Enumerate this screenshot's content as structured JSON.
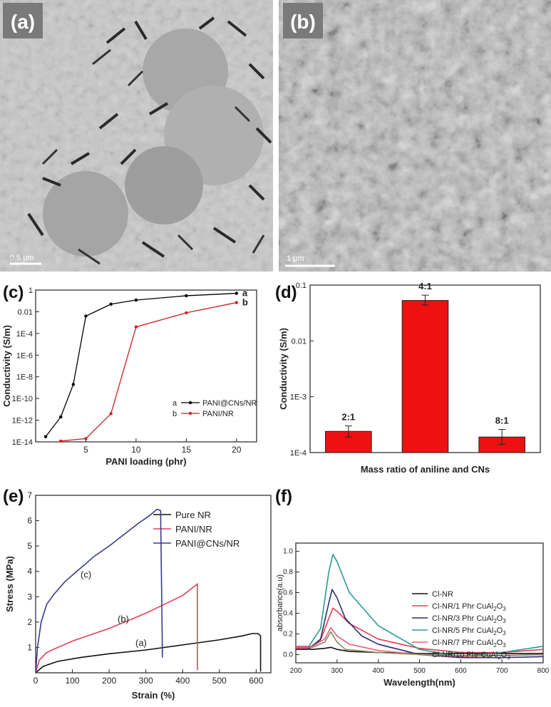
{
  "figure": {
    "panel_labels": {
      "a": "(a)",
      "b": "(b)",
      "c": "(c)",
      "d": "(d)",
      "e": "(e)",
      "f": "(f)"
    },
    "micrograph_a": {
      "scale_bar": "0.5 μm"
    },
    "micrograph_b": {
      "scale_bar": "1 μm"
    }
  },
  "chart_data": [
    {
      "id": "c",
      "type": "line",
      "yscale": "log",
      "xlabel": "PANI loading (phr)",
      "ylabel": "Conductivity (S/m)",
      "xlim": [
        0,
        22
      ],
      "ylim": [
        1e-14,
        1
      ],
      "xticks": [
        5,
        10,
        15,
        20
      ],
      "yticks": [
        {
          "v": 1,
          "label": "1"
        },
        {
          "v": 0.01,
          "label": "0.01"
        },
        {
          "v": 0.0001,
          "label": "1E-4"
        },
        {
          "v": 1e-06,
          "label": "1E-6"
        },
        {
          "v": 1e-08,
          "label": "1E-8"
        },
        {
          "v": 1e-10,
          "label": "1E-10"
        },
        {
          "v": 1e-12,
          "label": "1E-12"
        },
        {
          "v": 1e-14,
          "label": "1E-14"
        }
      ],
      "legend_position": "bottom-right",
      "series": [
        {
          "name": "PANI@CNs/NR",
          "key": "a",
          "color": "#000000",
          "x": [
            1,
            2.5,
            3.75,
            5,
            7.5,
            10,
            15,
            20
          ],
          "y": [
            3e-14,
            2e-12,
            2e-09,
            0.004,
            0.05,
            0.12,
            0.3,
            0.5
          ]
        },
        {
          "name": "PANI/NR",
          "key": "b",
          "color": "#cc2222",
          "x": [
            2.5,
            5,
            7.5,
            10,
            15,
            20
          ],
          "y": [
            1.2e-14,
            2e-14,
            4e-12,
            0.0004,
            0.008,
            0.07
          ]
        }
      ],
      "series_end_labels": [
        "a",
        "b"
      ]
    },
    {
      "id": "d",
      "type": "bar",
      "yscale": "log",
      "xlabel": "Mass ratio of aniline and CNs",
      "ylabel": "Conductivity (S/m)",
      "ylim": [
        0.0001,
        0.1
      ],
      "yticks": [
        {
          "v": 0.1,
          "label": "0.1"
        },
        {
          "v": 0.01,
          "label": "0.01"
        },
        {
          "v": 0.001,
          "label": "1E-3"
        },
        {
          "v": 0.0001,
          "label": "1E-4"
        }
      ],
      "categories": [
        "2:1",
        "4:1",
        "8:1"
      ],
      "values": [
        0.00024,
        0.053,
        0.00019
      ],
      "errors_upper": [
        0.0003,
        0.066,
        0.00026
      ],
      "errors_lower": [
        0.00019,
        0.044,
        0.00014
      ],
      "bar_color": "#ee1111"
    },
    {
      "id": "e",
      "type": "line",
      "xlabel": "Strain (%)",
      "ylabel": "Stress (MPa)",
      "xlim": [
        0,
        640
      ],
      "ylim": [
        0,
        7
      ],
      "xticks": [
        0,
        100,
        200,
        300,
        400,
        500,
        600
      ],
      "yticks": [
        1,
        2,
        3,
        4,
        5,
        6,
        7
      ],
      "legend_position": "top-right",
      "series": [
        {
          "name": "Pure NR",
          "color": "#111111",
          "x": [
            0,
            20,
            60,
            120,
            200,
            300,
            400,
            500,
            560,
            590,
            605,
            612,
            612
          ],
          "y": [
            0,
            0.25,
            0.45,
            0.6,
            0.75,
            0.9,
            1.1,
            1.3,
            1.45,
            1.55,
            1.55,
            1.45,
            0.05
          ]
        },
        {
          "name": "PANI/NR",
          "color": "#e0405a",
          "x": [
            0,
            10,
            30,
            60,
            100,
            150,
            200,
            250,
            300,
            350,
            400,
            440,
            440
          ],
          "y": [
            0,
            0.5,
            0.8,
            1.0,
            1.25,
            1.5,
            1.75,
            2.05,
            2.35,
            2.7,
            3.05,
            3.5,
            0.1
          ]
        },
        {
          "name": "PANI@CNs/NR",
          "color": "#3a3a8a",
          "x": [
            0,
            5,
            15,
            30,
            50,
            80,
            120,
            160,
            200,
            240,
            280,
            310,
            330,
            340,
            345
          ],
          "y": [
            0,
            1.0,
            2.0,
            2.7,
            3.1,
            3.6,
            4.1,
            4.6,
            5.0,
            5.45,
            5.9,
            6.2,
            6.45,
            6.4,
            0.6
          ]
        }
      ],
      "annotations": [
        "(a)",
        "(b)",
        "(c)"
      ]
    },
    {
      "id": "f",
      "type": "line",
      "xlabel": "Wavelength(nm)",
      "ylabel": "absorbance(a.u)",
      "xlim": [
        200,
        800
      ],
      "ylim": [
        -0.08,
        1.08
      ],
      "xticks": [
        200,
        300,
        400,
        500,
        600,
        700,
        800
      ],
      "yticks": [
        0.0,
        0.2,
        0.4,
        0.6,
        0.8,
        1.0
      ],
      "legend_position": "center-right",
      "series": [
        {
          "name": "Cl-NR",
          "color": "#111111",
          "x": [
            200,
            240,
            270,
            285,
            300,
            330,
            400,
            500,
            600,
            700,
            800
          ],
          "y": [
            0.06,
            0.05,
            0.06,
            0.07,
            0.05,
            0.03,
            0.02,
            0.01,
            0.01,
            0.01,
            0.01
          ]
        },
        {
          "name": "Cl-NR/1 Phr CuAl2O3",
          "color": "#e03c54",
          "x": [
            200,
            230,
            260,
            280,
            290,
            300,
            330,
            400,
            500,
            600,
            700,
            800
          ],
          "y": [
            0.06,
            0.06,
            0.14,
            0.35,
            0.45,
            0.42,
            0.3,
            0.15,
            0.06,
            0.02,
            0.02,
            0.05
          ]
        },
        {
          "name": "Cl-NR/3 Phr CuAl2O3",
          "color": "#2c2c6e",
          "x": [
            200,
            230,
            260,
            280,
            288,
            300,
            320,
            360,
            400,
            450,
            500,
            600,
            700,
            800
          ],
          "y": [
            0.05,
            0.05,
            0.15,
            0.5,
            0.63,
            0.55,
            0.35,
            0.18,
            0.1,
            0.05,
            0.0,
            -0.03,
            -0.03,
            -0.02
          ]
        },
        {
          "name": "Cl-NR/5 Phr CuAl2O3",
          "color": "#2a9a92",
          "x": [
            200,
            230,
            260,
            280,
            290,
            300,
            330,
            400,
            500,
            600,
            700,
            800
          ],
          "y": [
            0.08,
            0.07,
            0.25,
            0.8,
            0.97,
            0.9,
            0.6,
            0.28,
            0.05,
            -0.02,
            0.02,
            0.08
          ]
        },
        {
          "name": "Cl-NR/7 Phr CuAl2O3",
          "color": "#e0607c",
          "x": [
            200,
            240,
            270,
            285,
            300,
            330,
            400,
            500,
            600,
            700,
            800
          ],
          "y": [
            0.08,
            0.08,
            0.15,
            0.26,
            0.18,
            0.1,
            0.04,
            0.0,
            -0.02,
            -0.01,
            0.0
          ]
        },
        {
          "name": "Cl-NR/10 Phr CuAl2O3",
          "color": "#8a8a5a",
          "x": [
            200,
            240,
            270,
            285,
            300,
            320,
            400,
            500,
            600,
            700,
            800
          ],
          "y": [
            0.07,
            0.07,
            0.12,
            0.22,
            0.12,
            0.05,
            0.02,
            0.0,
            -0.01,
            -0.01,
            0.0
          ]
        }
      ]
    }
  ]
}
